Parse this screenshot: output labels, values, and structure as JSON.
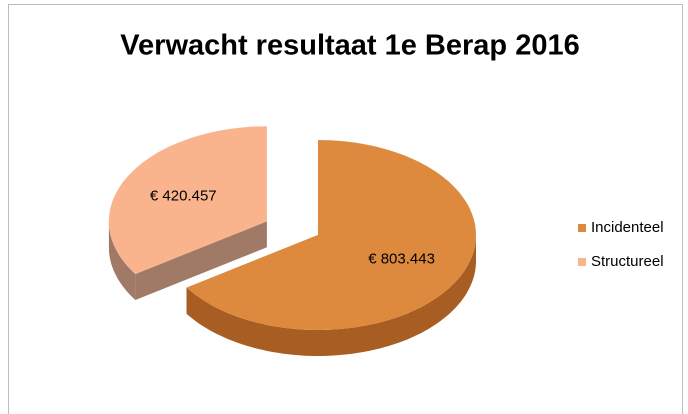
{
  "chart_data": {
    "type": "pie",
    "title": "Verwacht resultaat 1e Berap 2016",
    "categories": [
      "Incidenteel",
      "Structureel"
    ],
    "values": [
      803443,
      420457
    ],
    "value_labels": [
      "€ 803.443",
      "€ 420.457"
    ],
    "colors": [
      "#de8a3e",
      "#f9b48e"
    ],
    "side_colors": [
      "#a85e22",
      "#a07a67"
    ],
    "exploded": [
      false,
      true
    ],
    "legend": "right"
  }
}
